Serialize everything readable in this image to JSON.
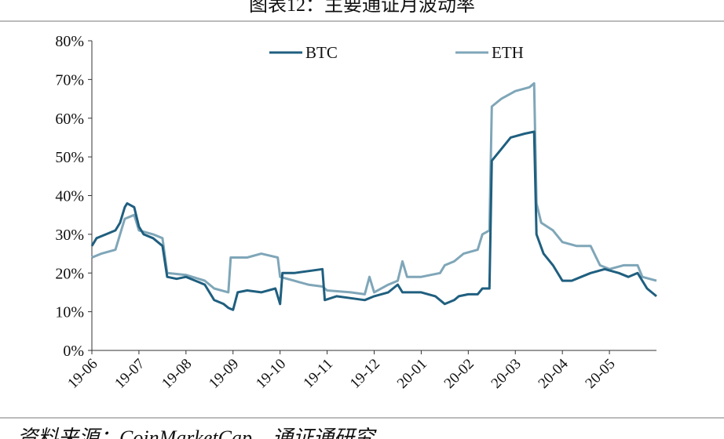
{
  "title": "图表12：主要通证月波动率",
  "source": "资料来源：CoinMarketCap，通证通研究",
  "chart_data": {
    "type": "line",
    "title": "图表12：主要通证月波动率",
    "xlabel": "",
    "ylabel": "",
    "ylim": [
      0,
      80
    ],
    "yticks": [
      "0%",
      "10%",
      "20%",
      "30%",
      "40%",
      "50%",
      "60%",
      "70%",
      "80%"
    ],
    "xticks": [
      "19-06",
      "19-07",
      "19-08",
      "19-09",
      "19-10",
      "19-11",
      "19-12",
      "20-01",
      "20-02",
      "20-03",
      "20-04",
      "20-05"
    ],
    "x_unit": "months since 2019-06",
    "legend_position": "top",
    "grid": false,
    "series": [
      {
        "name": "BTC",
        "color": "#1f5f7f",
        "points": [
          [
            0,
            27
          ],
          [
            0.1,
            29
          ],
          [
            0.3,
            30
          ],
          [
            0.5,
            31
          ],
          [
            0.6,
            33
          ],
          [
            0.7,
            37
          ],
          [
            0.75,
            38
          ],
          [
            0.9,
            37
          ],
          [
            1.0,
            32
          ],
          [
            1.1,
            30
          ],
          [
            1.3,
            29
          ],
          [
            1.5,
            27
          ],
          [
            1.6,
            19
          ],
          [
            1.8,
            18.5
          ],
          [
            2.0,
            19
          ],
          [
            2.2,
            18
          ],
          [
            2.4,
            17
          ],
          [
            2.6,
            13
          ],
          [
            2.8,
            12
          ],
          [
            2.9,
            11
          ],
          [
            3.0,
            10.5
          ],
          [
            3.1,
            15
          ],
          [
            3.3,
            15.5
          ],
          [
            3.6,
            15
          ],
          [
            3.9,
            16
          ],
          [
            4.0,
            12
          ],
          [
            4.05,
            20
          ],
          [
            4.3,
            20
          ],
          [
            4.6,
            20.5
          ],
          [
            4.9,
            21
          ],
          [
            4.95,
            13
          ],
          [
            5.2,
            14
          ],
          [
            5.5,
            13.5
          ],
          [
            5.8,
            13
          ],
          [
            6.0,
            14
          ],
          [
            6.3,
            15
          ],
          [
            6.5,
            17
          ],
          [
            6.6,
            15
          ],
          [
            7.0,
            15
          ],
          [
            7.3,
            14
          ],
          [
            7.5,
            12
          ],
          [
            7.7,
            13
          ],
          [
            7.8,
            14
          ],
          [
            8.0,
            14.5
          ],
          [
            8.2,
            14.5
          ],
          [
            8.3,
            16
          ],
          [
            8.45,
            16
          ],
          [
            8.5,
            49
          ],
          [
            8.7,
            52
          ],
          [
            8.9,
            55
          ],
          [
            9.2,
            56
          ],
          [
            9.4,
            56.5
          ],
          [
            9.45,
            30
          ],
          [
            9.6,
            25
          ],
          [
            9.8,
            22
          ],
          [
            10.0,
            18
          ],
          [
            10.2,
            18
          ],
          [
            10.4,
            19
          ],
          [
            10.6,
            20
          ],
          [
            10.9,
            21
          ],
          [
            11.2,
            20
          ],
          [
            11.4,
            19
          ],
          [
            11.6,
            20
          ],
          [
            11.8,
            16
          ],
          [
            12.0,
            14
          ]
        ]
      },
      {
        "name": "ETH",
        "color": "#7fa6b8",
        "points": [
          [
            0,
            24
          ],
          [
            0.2,
            25
          ],
          [
            0.5,
            26
          ],
          [
            0.6,
            30
          ],
          [
            0.7,
            34
          ],
          [
            0.9,
            35
          ],
          [
            1.0,
            31
          ],
          [
            1.3,
            30
          ],
          [
            1.5,
            29
          ],
          [
            1.6,
            20
          ],
          [
            2.0,
            19.5
          ],
          [
            2.4,
            18
          ],
          [
            2.6,
            16
          ],
          [
            2.9,
            15
          ],
          [
            2.95,
            24
          ],
          [
            3.3,
            24
          ],
          [
            3.6,
            25
          ],
          [
            3.95,
            24
          ],
          [
            4.0,
            19
          ],
          [
            4.3,
            18
          ],
          [
            4.6,
            17
          ],
          [
            4.9,
            16.5
          ],
          [
            5.0,
            15.5
          ],
          [
            5.5,
            15
          ],
          [
            5.8,
            14.5
          ],
          [
            5.9,
            19
          ],
          [
            6.0,
            15
          ],
          [
            6.3,
            17
          ],
          [
            6.5,
            18
          ],
          [
            6.6,
            23
          ],
          [
            6.7,
            19
          ],
          [
            7.0,
            19
          ],
          [
            7.4,
            20
          ],
          [
            7.5,
            22
          ],
          [
            7.7,
            23
          ],
          [
            7.9,
            25
          ],
          [
            8.2,
            26
          ],
          [
            8.3,
            30
          ],
          [
            8.45,
            31
          ],
          [
            8.5,
            63
          ],
          [
            8.7,
            65
          ],
          [
            9.0,
            67
          ],
          [
            9.3,
            68
          ],
          [
            9.4,
            69
          ],
          [
            9.45,
            38
          ],
          [
            9.55,
            33
          ],
          [
            9.8,
            31
          ],
          [
            10.0,
            28
          ],
          [
            10.3,
            27
          ],
          [
            10.6,
            27
          ],
          [
            10.8,
            22
          ],
          [
            11.0,
            21
          ],
          [
            11.3,
            22
          ],
          [
            11.6,
            22
          ],
          [
            11.7,
            19
          ],
          [
            12.0,
            18
          ]
        ]
      }
    ]
  }
}
